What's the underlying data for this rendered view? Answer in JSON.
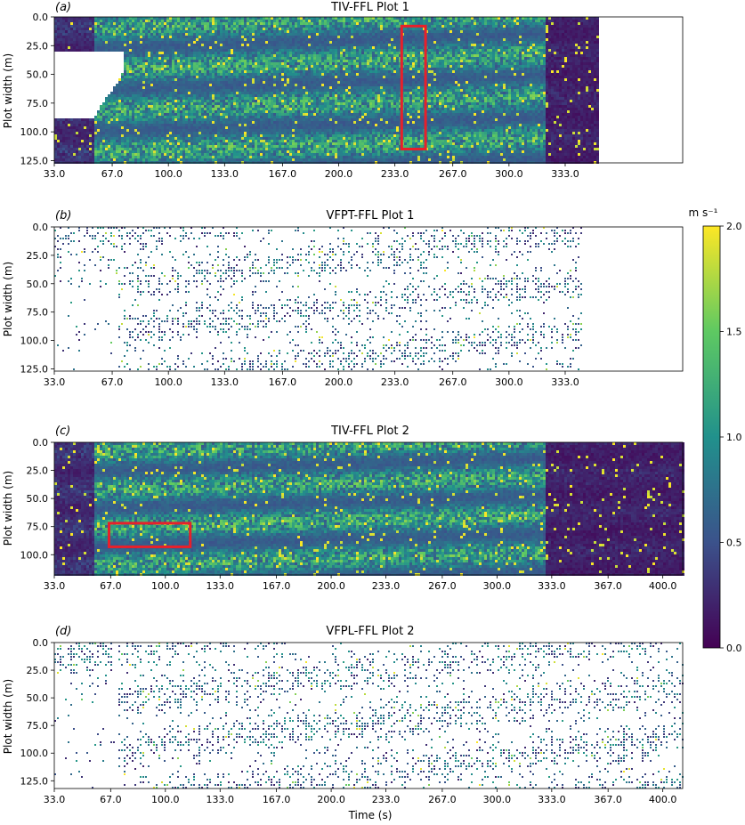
{
  "colorbar": {
    "unit_label": "m s⁻¹",
    "ticks": [
      0.0,
      0.5,
      1.0,
      1.5,
      2.0
    ],
    "tick_labels": [
      "0.0",
      "0.5",
      "1.0",
      "1.5",
      "2.0"
    ],
    "range": [
      0.0,
      2.0
    ],
    "colormap": "viridis",
    "colors": [
      "#440154",
      "#3b528b",
      "#21918c",
      "#5ec962",
      "#fde725"
    ]
  },
  "chart_data": [
    {
      "type": "heatmap",
      "panel_label": "(a)",
      "title": "TIV-FFL Plot 1",
      "xlabel": "",
      "ylabel": "Plot width (m)",
      "x_tick_labels": [
        "33.0",
        "67.0",
        "100.0",
        "133.0",
        "167.0",
        "200.0",
        "233.0",
        "267.0",
        "300.0",
        "333.0"
      ],
      "x_ticks": [
        33,
        67,
        100,
        133,
        167,
        200,
        233,
        267,
        300,
        333
      ],
      "y_tick_labels": [
        "0.0",
        "25.0",
        "50.0",
        "75.0",
        "100.0",
        "125.0"
      ],
      "y_ticks": [
        0,
        25,
        50,
        75,
        100,
        125
      ],
      "xlim": [
        33,
        402
      ],
      "ylim": [
        127,
        0
      ],
      "data_xmax": 352,
      "mode": "dense",
      "highlight_box": {
        "x": [
          237,
          251
        ],
        "y": [
          8,
          115
        ],
        "color": "#e8202a"
      }
    },
    {
      "type": "heatmap",
      "panel_label": "(b)",
      "title": "VFPT-FFL Plot 1",
      "xlabel": "",
      "ylabel": "Plot width (m)",
      "x_tick_labels": [
        "33.0",
        "67.0",
        "100.0",
        "133.0",
        "167.0",
        "200.0",
        "233.0",
        "267.0",
        "300.0",
        "333.0"
      ],
      "x_ticks": [
        33,
        67,
        100,
        133,
        167,
        200,
        233,
        267,
        300,
        333
      ],
      "y_tick_labels": [
        "0.0",
        "25.0",
        "50.0",
        "75.0",
        "100.0",
        "125.0"
      ],
      "y_ticks": [
        0,
        25,
        50,
        75,
        100,
        125
      ],
      "xlim": [
        33,
        402
      ],
      "ylim": [
        127,
        0
      ],
      "data_xmax": 342,
      "mode": "sparse"
    },
    {
      "type": "heatmap",
      "panel_label": "(c)",
      "title": "TIV-FFL Plot 2",
      "xlabel": "",
      "ylabel": "Plot width (m)",
      "x_tick_labels": [
        "33.0",
        "67.0",
        "100.0",
        "133.0",
        "167.0",
        "200.0",
        "233.0",
        "267.0",
        "300.0",
        "333.0",
        "367.0",
        "400.0"
      ],
      "x_ticks": [
        33,
        67,
        100,
        133,
        167,
        200,
        233,
        267,
        300,
        333,
        367,
        400
      ],
      "y_tick_labels": [
        "0.0",
        "25.0",
        "50.0",
        "75.0",
        "100.0"
      ],
      "y_ticks": [
        0,
        25,
        50,
        75,
        100
      ],
      "xlim": [
        33,
        412
      ],
      "ylim": [
        118,
        0
      ],
      "data_xmax": 412,
      "mode": "dense",
      "highlight_box": {
        "x": [
          66,
          115
        ],
        "y": [
          72,
          93
        ],
        "color": "#e8202a"
      }
    },
    {
      "type": "heatmap",
      "panel_label": "(d)",
      "title": "VFPL-FFL Plot 2",
      "xlabel": "Time (s)",
      "ylabel": "Plot width (m)",
      "x_tick_labels": [
        "33.0",
        "67.0",
        "100.0",
        "133.0",
        "167.0",
        "200.0",
        "233.0",
        "267.0",
        "300.0",
        "333.0",
        "367.0",
        "400.0"
      ],
      "x_ticks": [
        33,
        67,
        100,
        133,
        167,
        200,
        233,
        267,
        300,
        333,
        367,
        400
      ],
      "y_tick_labels": [
        "0.0",
        "25.0",
        "50.0",
        "75.0",
        "100.0",
        "125.0"
      ],
      "y_ticks": [
        0,
        25,
        50,
        75,
        100,
        125
      ],
      "xlim": [
        33,
        412
      ],
      "ylim": [
        132,
        0
      ],
      "data_xmax": 412,
      "mode": "sparse"
    }
  ]
}
